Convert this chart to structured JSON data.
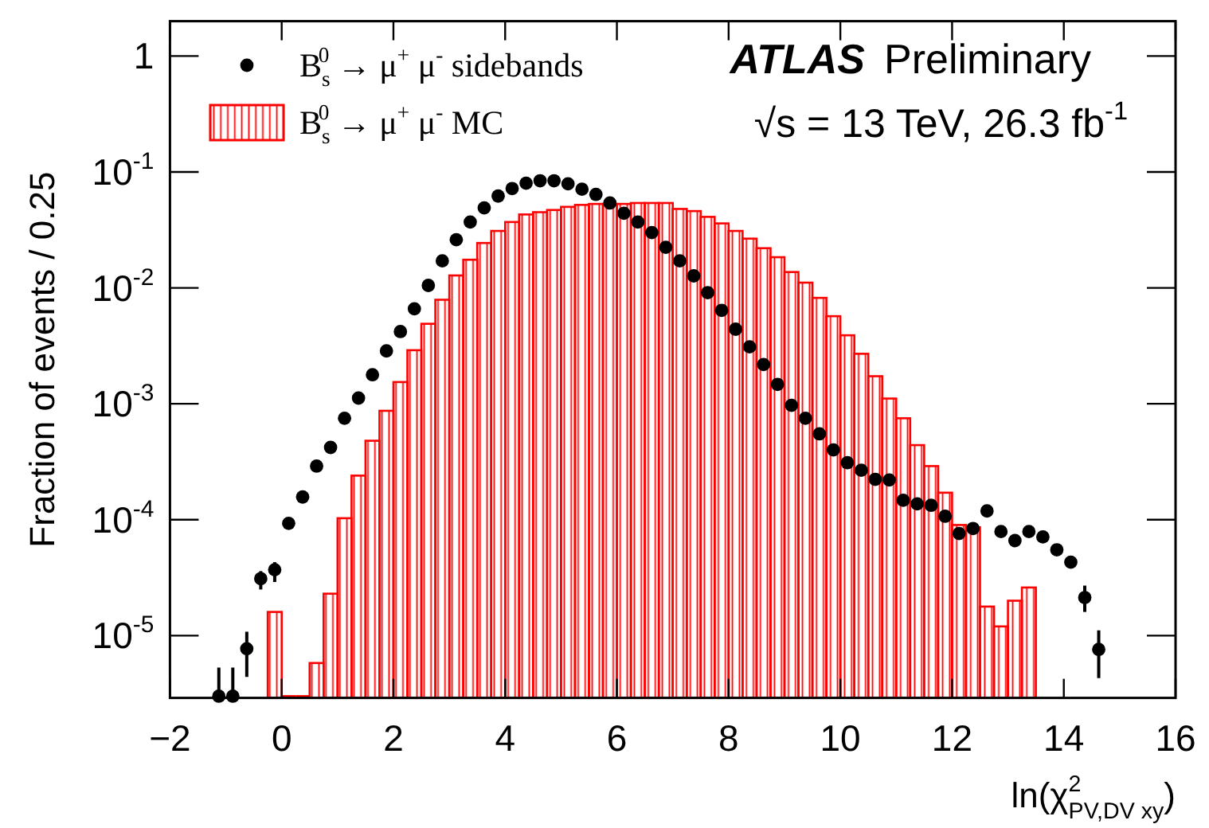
{
  "chart_data": {
    "type": "histogram",
    "xlabel": "ln(χ$^{2}$$_{PV,DV xy}$)",
    "ylabel": "Fraction of events / 0.25",
    "annotations": [
      "ATLAS",
      "Preliminary",
      "√s = 13 TeV, 26.3 fb$^{-1}$"
    ],
    "log": "y",
    "legend": "top left",
    "grid": false,
    "xlim": [
      -2,
      16
    ],
    "xticks": [
      -2,
      0,
      2,
      4,
      6,
      8,
      10,
      12,
      14,
      16
    ],
    "ylim": [
      2.9e-06,
      2
    ],
    "yticks": [
      {
        "value": 1e-05,
        "label": "10$^{-5}$"
      },
      {
        "value": 0.0001,
        "label": "10$^{-4}$"
      },
      {
        "value": 0.001,
        "label": "10$^{-3}$"
      },
      {
        "value": 0.01,
        "label": "10$^{-2}$"
      },
      {
        "value": 0.1,
        "label": "10$^{-1}$"
      },
      1
    ],
    "series": [
      {
        "name": "B$_{s}$$^{0}$ → μ$^{+}$ μ$^{-}$ MC",
        "color": "#ff0000",
        "bins": [
          -0.25,
          0,
          0.25,
          0.5,
          0.75,
          1,
          1.25,
          1.5,
          1.75,
          2,
          2.25,
          2.5,
          2.75,
          3,
          3.25,
          3.5,
          3.75,
          4,
          4.25,
          4.5,
          4.75,
          5,
          5.25,
          5.5,
          5.75,
          6,
          6.25,
          6.5,
          6.75,
          7,
          7.25,
          7.5,
          7.75,
          8,
          8.25,
          8.5,
          8.75,
          9,
          9.25,
          9.5,
          9.75,
          10,
          10.25,
          10.5,
          10.75,
          11,
          11.25,
          11.5,
          11.75,
          12,
          12.25,
          12.5,
          12.75,
          13,
          13.25,
          13.5
        ],
        "values": [
          1.6e-05,
          null,
          null,
          5.8e-06,
          2.3e-05,
          0.000103,
          0.00024,
          0.00048,
          0.00087,
          0.00154,
          0.0029,
          0.0049,
          0.0079,
          0.0128,
          0.0175,
          0.0244,
          0.031,
          0.037,
          0.043,
          0.045,
          0.047,
          0.05,
          0.052,
          0.053,
          0.053,
          0.053,
          0.054,
          0.054,
          0.054,
          0.048,
          0.046,
          0.041,
          0.036,
          0.031,
          0.0266,
          0.022,
          0.0184,
          0.0137,
          0.0111,
          0.0082,
          0.0057,
          0.0039,
          0.0027,
          0.00173,
          0.00111,
          0.00075,
          0.00044,
          0.00029,
          0.000171,
          9e-05,
          8.6e-05,
          1.78e-05,
          1.2e-05,
          2e-05,
          2.6e-05
        ]
      },
      {
        "type": "scatter",
        "name": "B$_{s}$$^{0}$ → μ$^{+}$ μ$^{-}$ sidebands",
        "color": "#000000",
        "marker": "circle",
        "x": [
          -1.125,
          -0.875,
          -0.625,
          -0.375,
          -0.125,
          0.125,
          0.375,
          0.625,
          0.875,
          1.125,
          1.375,
          1.625,
          1.875,
          2.125,
          2.375,
          2.625,
          2.875,
          3.125,
          3.375,
          3.625,
          3.875,
          4.125,
          4.375,
          4.625,
          4.875,
          5.125,
          5.375,
          5.625,
          5.875,
          6.125,
          6.375,
          6.625,
          6.875,
          7.125,
          7.375,
          7.625,
          7.875,
          8.125,
          8.375,
          8.625,
          8.875,
          9.125,
          9.375,
          9.625,
          9.875,
          10.125,
          10.375,
          10.625,
          10.875,
          11.125,
          11.375,
          11.625,
          11.875,
          12.125,
          12.375,
          12.625,
          12.875,
          13.125,
          13.375,
          13.625,
          13.875,
          14.125,
          14.375,
          14.625
        ],
        "values": [
          3e-06,
          3e-06,
          7.7e-06,
          3.1e-05,
          3.7e-05,
          9.3e-05,
          0.000157,
          0.00029,
          0.00042,
          0.00075,
          0.00112,
          0.00178,
          0.00286,
          0.0042,
          0.0066,
          0.0105,
          0.0171,
          0.026,
          0.037,
          0.049,
          0.062,
          0.072,
          0.08,
          0.084,
          0.084,
          0.079,
          0.071,
          0.064,
          0.054,
          0.044,
          0.037,
          0.03,
          0.0224,
          0.0171,
          0.0127,
          0.0091,
          0.0064,
          0.0044,
          0.0031,
          0.00218,
          0.00147,
          0.00097,
          0.00075,
          0.00055,
          0.0004,
          0.00031,
          0.000267,
          0.000223,
          0.00022,
          0.000147,
          0.000137,
          0.000133,
          0.000107,
          7.6e-05,
          8.4e-05,
          0.000119,
          7.9e-05,
          6.6e-05,
          7.9e-05,
          7.1e-05,
          5.5e-05,
          4.3e-05,
          2.13e-05,
          7.6e-06
        ],
        "errors": [
          [
            2.9e-06,
            5.3e-06
          ],
          [
            2.9e-06,
            5.3e-06
          ],
          [
            4.4e-06,
            1.08e-05
          ],
          [
            2.5e-05,
            3.6e-05
          ],
          [
            2.9e-05,
            4.3e-05
          ],
          null,
          null,
          null,
          null,
          null,
          null,
          null,
          null,
          null,
          null,
          null,
          null,
          null,
          null,
          null,
          null,
          null,
          null,
          null,
          null,
          null,
          null,
          null,
          null,
          null,
          null,
          null,
          null,
          null,
          null,
          null,
          null,
          null,
          null,
          null,
          null,
          null,
          null,
          null,
          null,
          null,
          null,
          null,
          null,
          null,
          null,
          null,
          null,
          null,
          null,
          null,
          null,
          null,
          null,
          null,
          null,
          null,
          [
            1.6e-05,
            2.7e-05
          ],
          [
            4.3e-06,
            1.11e-05
          ]
        ]
      }
    ]
  }
}
